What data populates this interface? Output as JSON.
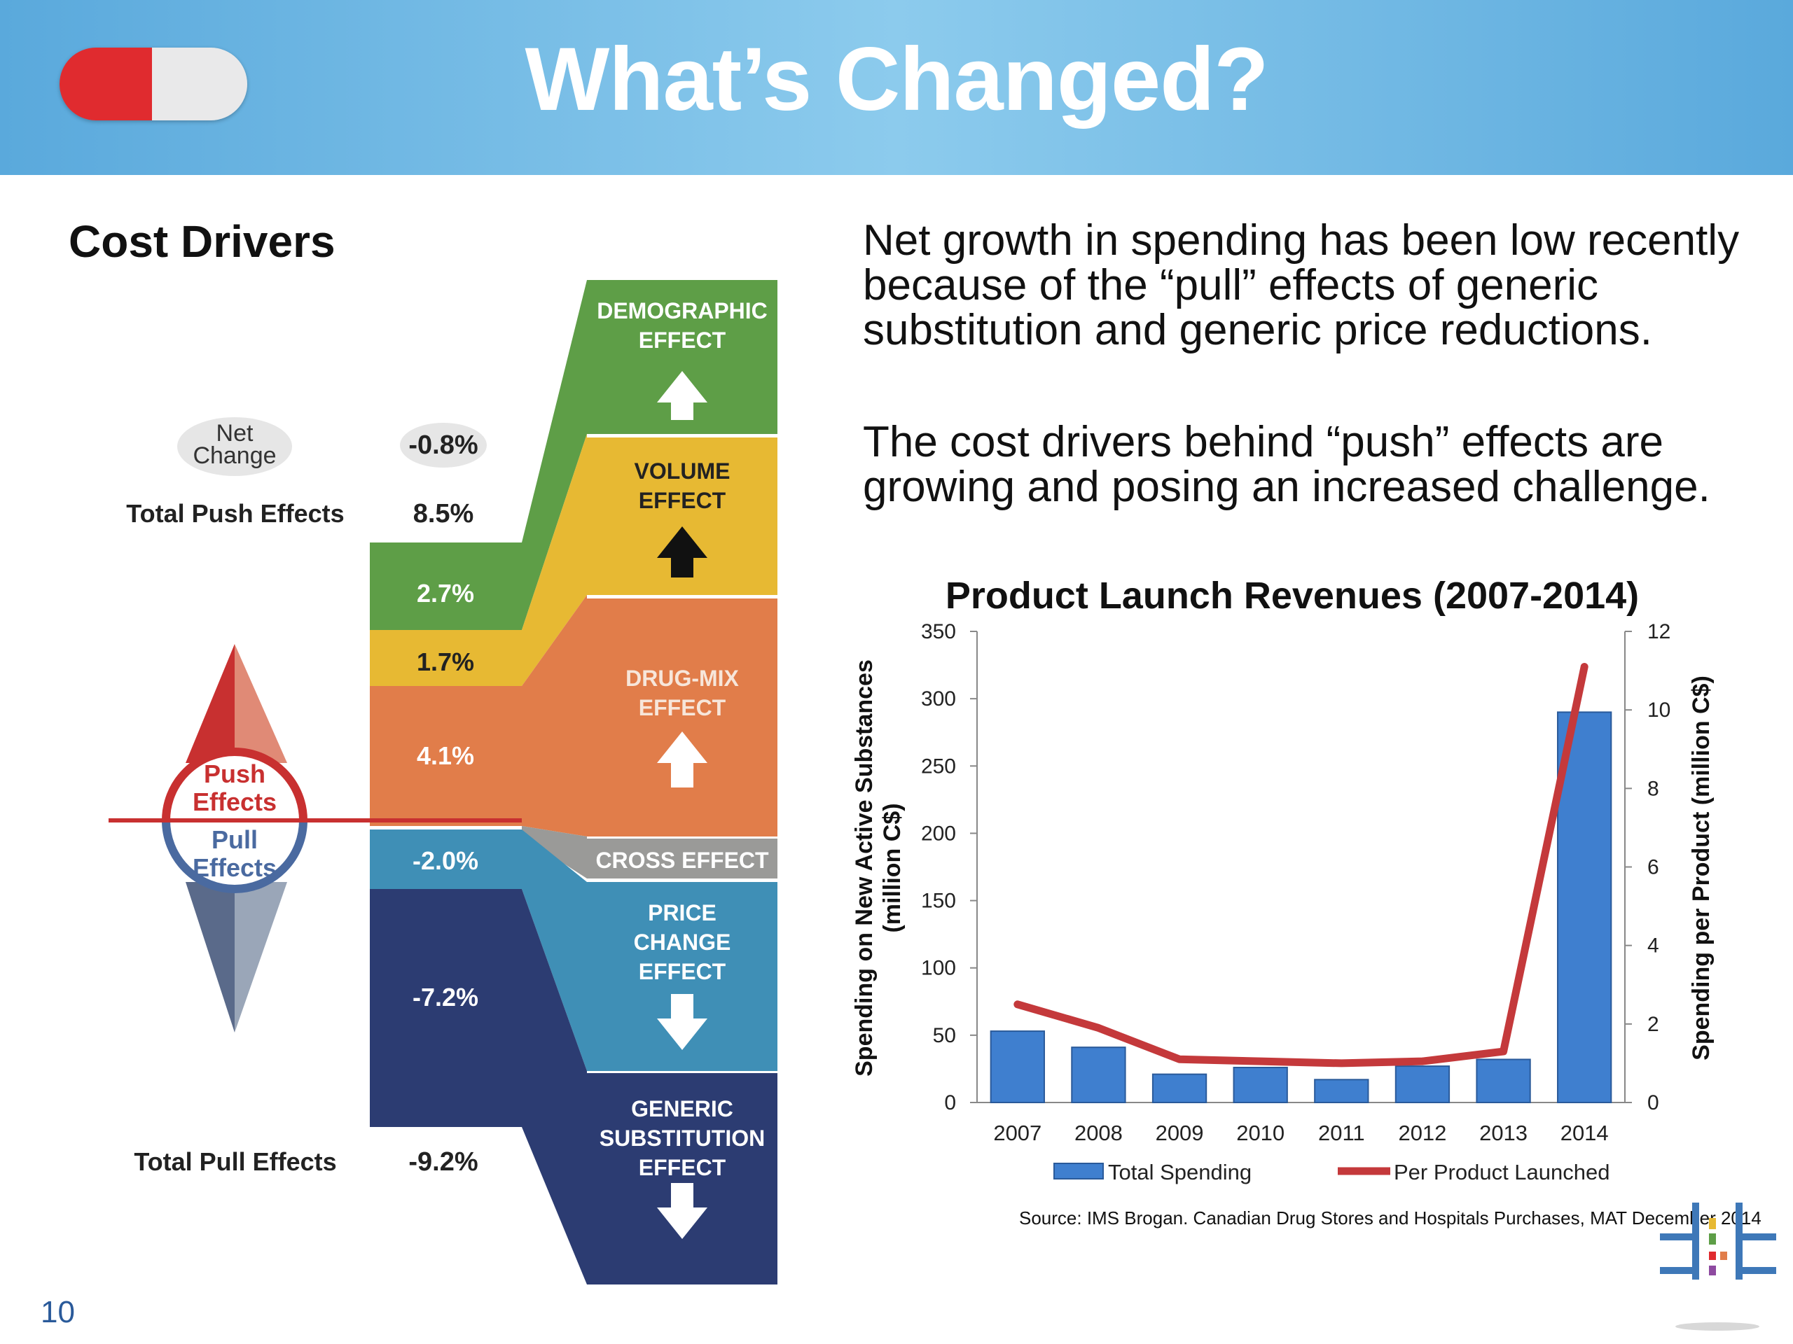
{
  "header": {
    "title": "What’s Changed?",
    "page_number": "10"
  },
  "left": {
    "title": "Cost Drivers",
    "net_change_label": "Net Change",
    "net_change_value": "-0.8%",
    "total_push_label": "Total Push Effects",
    "total_push_value": "8.5%",
    "total_pull_label": "Total Pull Effects",
    "total_pull_value": "-9.2%",
    "push_label": "Push Effects",
    "pull_label": "Pull Effects",
    "segments": [
      {
        "value": "2.7%",
        "color": "#5e9e47"
      },
      {
        "value": "1.7%",
        "color": "#e7b933"
      },
      {
        "value": "4.1%",
        "color": "#e17d4a"
      },
      {
        "value": "-2.0%",
        "color": "#3f8fb6"
      },
      {
        "value": "-7.2%",
        "color": "#2c3c72"
      }
    ],
    "effects": [
      {
        "label": "DEMOGRAPHIC EFFECT",
        "color": "#5e9e47",
        "arrow": "up"
      },
      {
        "label": "VOLUME EFFECT",
        "color": "#e7b933",
        "arrow": "up"
      },
      {
        "label": "DRUG-MIX EFFECT",
        "color": "#e17d4a",
        "arrow": "up"
      },
      {
        "label": "CROSS EFFECT",
        "color": "#9a9a98",
        "arrow": "none"
      },
      {
        "label": "PRICE CHANGE EFFECT",
        "color": "#3f8fb6",
        "arrow": "down"
      },
      {
        "label": "GENERIC SUBSTITUTION EFFECT",
        "color": "#2c3c72",
        "arrow": "down"
      }
    ]
  },
  "right": {
    "paragraph1": "Net growth in spending has been low recently because of the “pull” effects of generic substitution and generic price reductions.",
    "paragraph2": "The cost drivers behind “push” effects are growing and posing an increased challenge.",
    "source": "Source: IMS Brogan. Canadian Drug Stores and Hospitals Purchases, MAT December 2014"
  },
  "chart_data": {
    "type": "bar",
    "title": "Product Launch Revenues (2007-2014)",
    "categories": [
      "2007",
      "2008",
      "2009",
      "2010",
      "2011",
      "2012",
      "2013",
      "2014"
    ],
    "ylabel": "Spending on New Active Substances (million C$)",
    "y2label": "Spending per Product (million C$)",
    "ylim": [
      0,
      350
    ],
    "y2lim": [
      0,
      12
    ],
    "yticks": [
      "0",
      "50",
      "100",
      "150",
      "200",
      "250",
      "300",
      "350"
    ],
    "y2ticks": [
      "0",
      "2",
      "4",
      "6",
      "8",
      "10",
      "12"
    ],
    "series": [
      {
        "name": "Total Spending",
        "type": "bar",
        "axis": "left",
        "color": "#3f7fcf",
        "values": [
          53,
          41,
          21,
          26,
          17,
          27,
          32,
          290
        ]
      },
      {
        "name": "Per Product Launched",
        "type": "line",
        "axis": "right",
        "color": "#c4393b",
        "values": [
          2.5,
          1.9,
          1.1,
          1.05,
          1.0,
          1.05,
          1.3,
          11.1
        ]
      }
    ],
    "legend_position": "bottom",
    "grid": false
  }
}
